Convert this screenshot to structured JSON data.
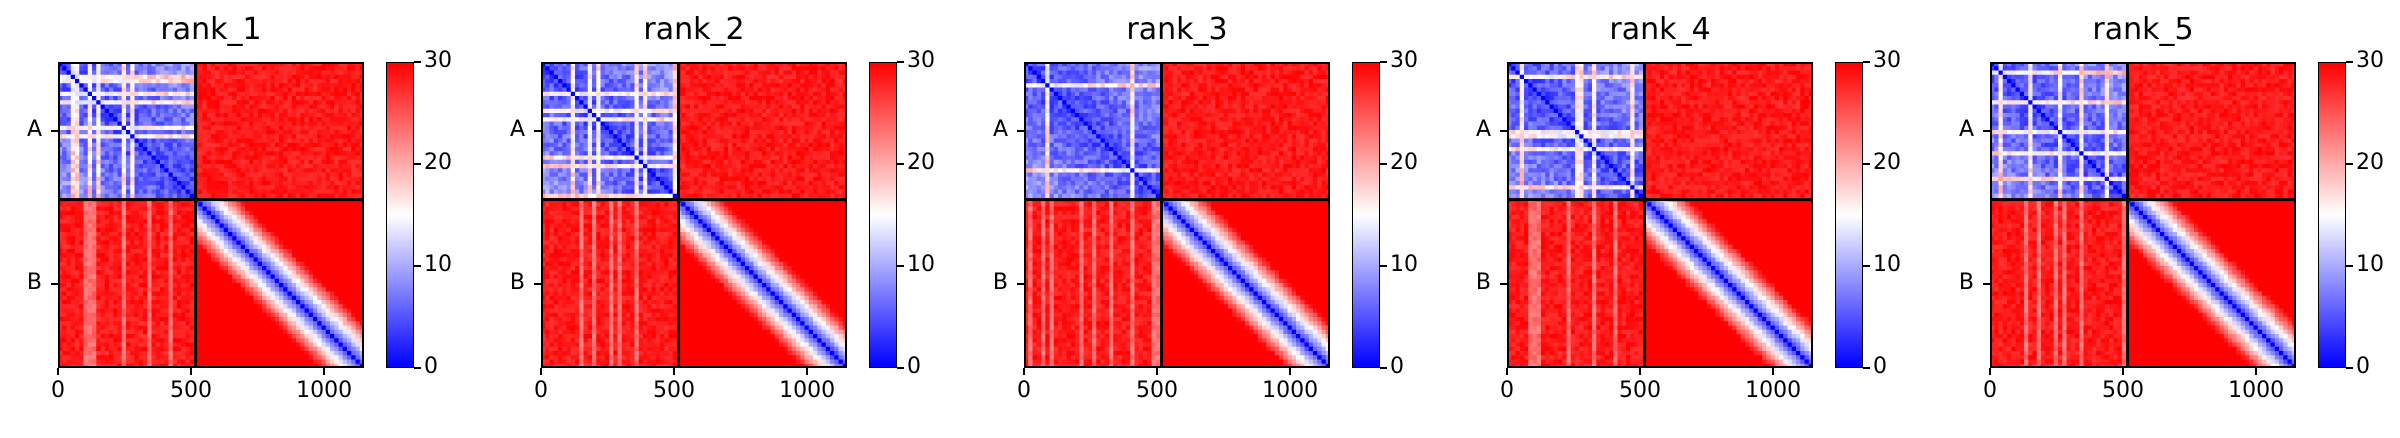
{
  "chart_data": [
    {
      "type": "heatmap",
      "title": "rank_1",
      "row_labels": [
        "A",
        "B"
      ],
      "x_ticks": [
        0,
        500,
        1000
      ],
      "xlim": [
        0,
        1150
      ],
      "segments": [
        {
          "name": "A",
          "start": 0,
          "end": 517
        },
        {
          "name": "B",
          "start": 517,
          "end": 1150
        }
      ],
      "colorbar": {
        "vmin": 0,
        "vmax": 30,
        "ticks": [
          0,
          10,
          20,
          30
        ],
        "colors": [
          "#0000ff",
          "#ffffff",
          "#ff0000"
        ]
      },
      "blocks": {
        "A-A": "low (blue, 0-10)",
        "A-B": "high (red, ~30)",
        "B-A": "high (red, ~25-30)",
        "B-B": "low along diagonal, high off-diagonal"
      }
    },
    {
      "type": "heatmap",
      "title": "rank_2",
      "row_labels": [
        "A",
        "B"
      ],
      "x_ticks": [
        0,
        500,
        1000
      ],
      "xlim": [
        0,
        1150
      ],
      "segments": [
        {
          "name": "A",
          "start": 0,
          "end": 517
        },
        {
          "name": "B",
          "start": 517,
          "end": 1150
        }
      ],
      "colorbar": {
        "vmin": 0,
        "vmax": 30,
        "ticks": [
          0,
          10,
          20,
          30
        ],
        "colors": [
          "#0000ff",
          "#ffffff",
          "#ff0000"
        ]
      },
      "blocks": {
        "A-A": "low (blue, 0-10)",
        "A-B": "high (red, ~30)",
        "B-A": "high (red, ~25-30)",
        "B-B": "low along diagonal, high off-diagonal"
      }
    },
    {
      "type": "heatmap",
      "title": "rank_3",
      "row_labels": [
        "A",
        "B"
      ],
      "x_ticks": [
        0,
        500,
        1000
      ],
      "xlim": [
        0,
        1150
      ],
      "segments": [
        {
          "name": "A",
          "start": 0,
          "end": 517
        },
        {
          "name": "B",
          "start": 517,
          "end": 1150
        }
      ],
      "colorbar": {
        "vmin": 0,
        "vmax": 30,
        "ticks": [
          0,
          10,
          20,
          30
        ],
        "colors": [
          "#0000ff",
          "#ffffff",
          "#ff0000"
        ]
      },
      "blocks": {
        "A-A": "low (blue, 0-10)",
        "A-B": "high (red, ~30)",
        "B-A": "high (red, ~25-30)",
        "B-B": "low along diagonal, high off-diagonal"
      }
    },
    {
      "type": "heatmap",
      "title": "rank_4",
      "row_labels": [
        "A",
        "B"
      ],
      "x_ticks": [
        0,
        500,
        1000
      ],
      "xlim": [
        0,
        1150
      ],
      "segments": [
        {
          "name": "A",
          "start": 0,
          "end": 517
        },
        {
          "name": "B",
          "start": 517,
          "end": 1150
        }
      ],
      "colorbar": {
        "vmin": 0,
        "vmax": 30,
        "ticks": [
          0,
          10,
          20,
          30
        ],
        "colors": [
          "#0000ff",
          "#ffffff",
          "#ff0000"
        ]
      },
      "blocks": {
        "A-A": "low (blue, 0-10)",
        "A-B": "high (red, ~30)",
        "B-A": "high (red, ~25-30)",
        "B-B": "low along diagonal, high off-diagonal"
      }
    },
    {
      "type": "heatmap",
      "title": "rank_5",
      "row_labels": [
        "A",
        "B"
      ],
      "x_ticks": [
        0,
        500,
        1000
      ],
      "xlim": [
        0,
        1150
      ],
      "segments": [
        {
          "name": "A",
          "start": 0,
          "end": 517
        },
        {
          "name": "B",
          "start": 517,
          "end": 1150
        }
      ],
      "colorbar": {
        "vmin": 0,
        "vmax": 30,
        "ticks": [
          0,
          10,
          20,
          30
        ],
        "colors": [
          "#0000ff",
          "#ffffff",
          "#ff0000"
        ]
      },
      "blocks": {
        "A-A": "low (blue, 0-10)",
        "A-B": "high (red, ~30)",
        "B-A": "high (red, ~25-30)",
        "B-B": "low along diagonal, high off-diagonal"
      }
    }
  ]
}
